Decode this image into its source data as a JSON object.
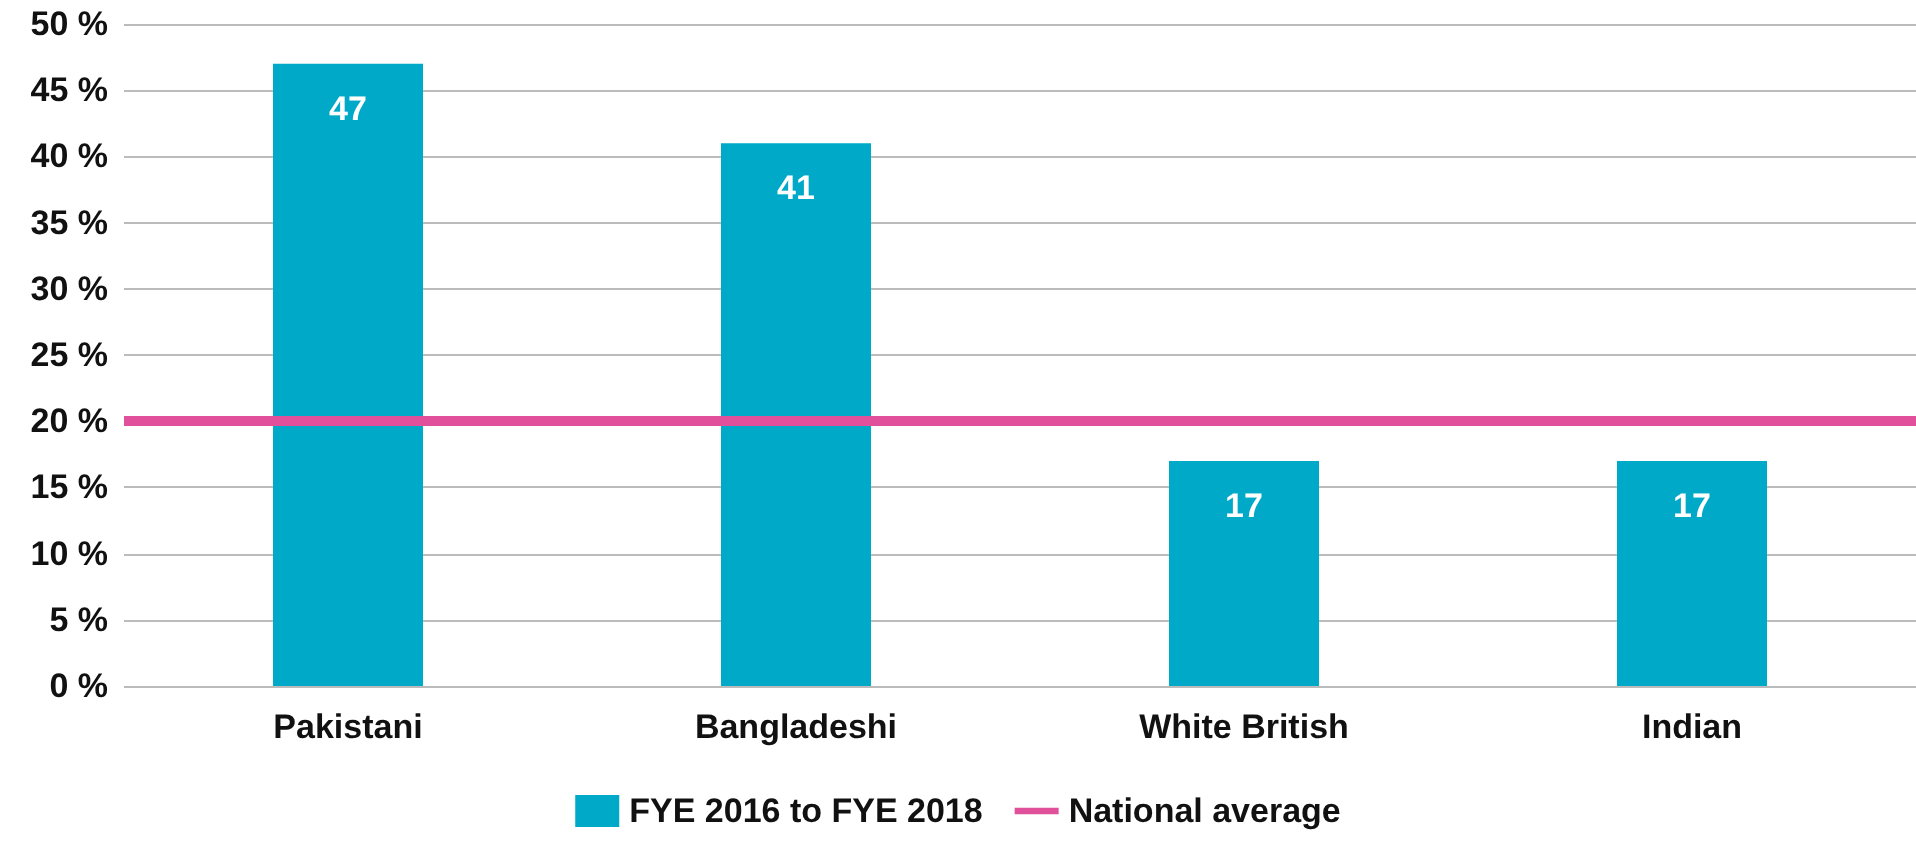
{
  "chart_data": {
    "type": "bar",
    "categories": [
      "Pakistani",
      "Bangladeshi",
      "White British",
      "Indian"
    ],
    "series": [
      {
        "name": "FYE 2016 to FYE 2018",
        "color": "#00a9c7",
        "values": [
          47,
          41,
          17,
          17
        ]
      }
    ],
    "ylim": [
      0,
      50
    ],
    "yticks": [
      {
        "value": 0,
        "label": "0 %"
      },
      {
        "value": 5,
        "label": "5 %"
      },
      {
        "value": 10,
        "label": "10 %"
      },
      {
        "value": 15,
        "label": "15 %"
      },
      {
        "value": 20,
        "label": "20 %"
      },
      {
        "value": 25,
        "label": "25 %"
      },
      {
        "value": 30,
        "label": "30 %"
      },
      {
        "value": 35,
        "label": "35 %"
      },
      {
        "value": 40,
        "label": "40 %"
      },
      {
        "value": 45,
        "label": "45 %"
      },
      {
        "value": 50,
        "label": "50 %"
      }
    ],
    "ref_lines": [
      {
        "axis": "y",
        "value": 20,
        "label": "National average",
        "color": "#e0509b"
      }
    ],
    "grid": "y",
    "legend": "bottom",
    "data_labels": true
  }
}
